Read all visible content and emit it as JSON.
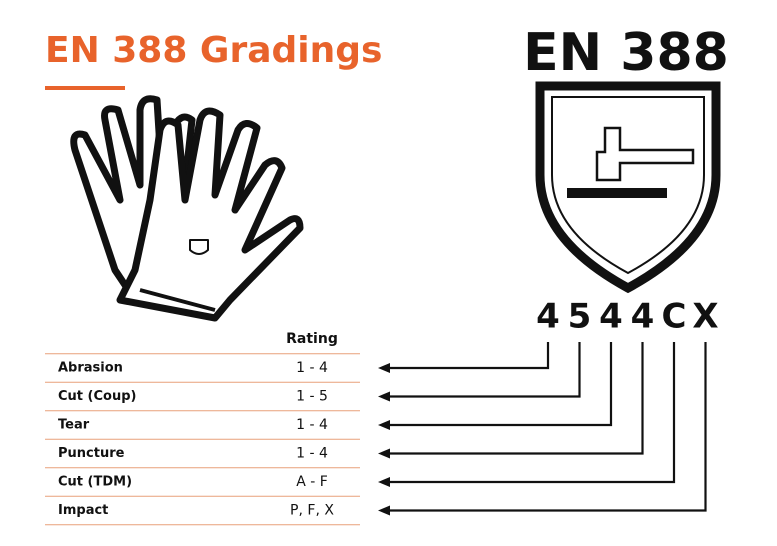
{
  "header": {
    "title": "EN 388 Gradings",
    "badge": "EN 388"
  },
  "code": [
    "4",
    "5",
    "4",
    "4",
    "C",
    "X"
  ],
  "table": {
    "header": "Rating",
    "rows": [
      [
        "Abrasion",
        "1 - 4"
      ],
      [
        "Cut (Coup)",
        "1 - 5"
      ],
      [
        "Tear",
        "1 - 4"
      ],
      [
        "Puncture",
        "1 - 4"
      ],
      [
        "Cut (TDM)",
        "A - F"
      ],
      [
        "Impact",
        "P, F, X"
      ]
    ]
  }
}
